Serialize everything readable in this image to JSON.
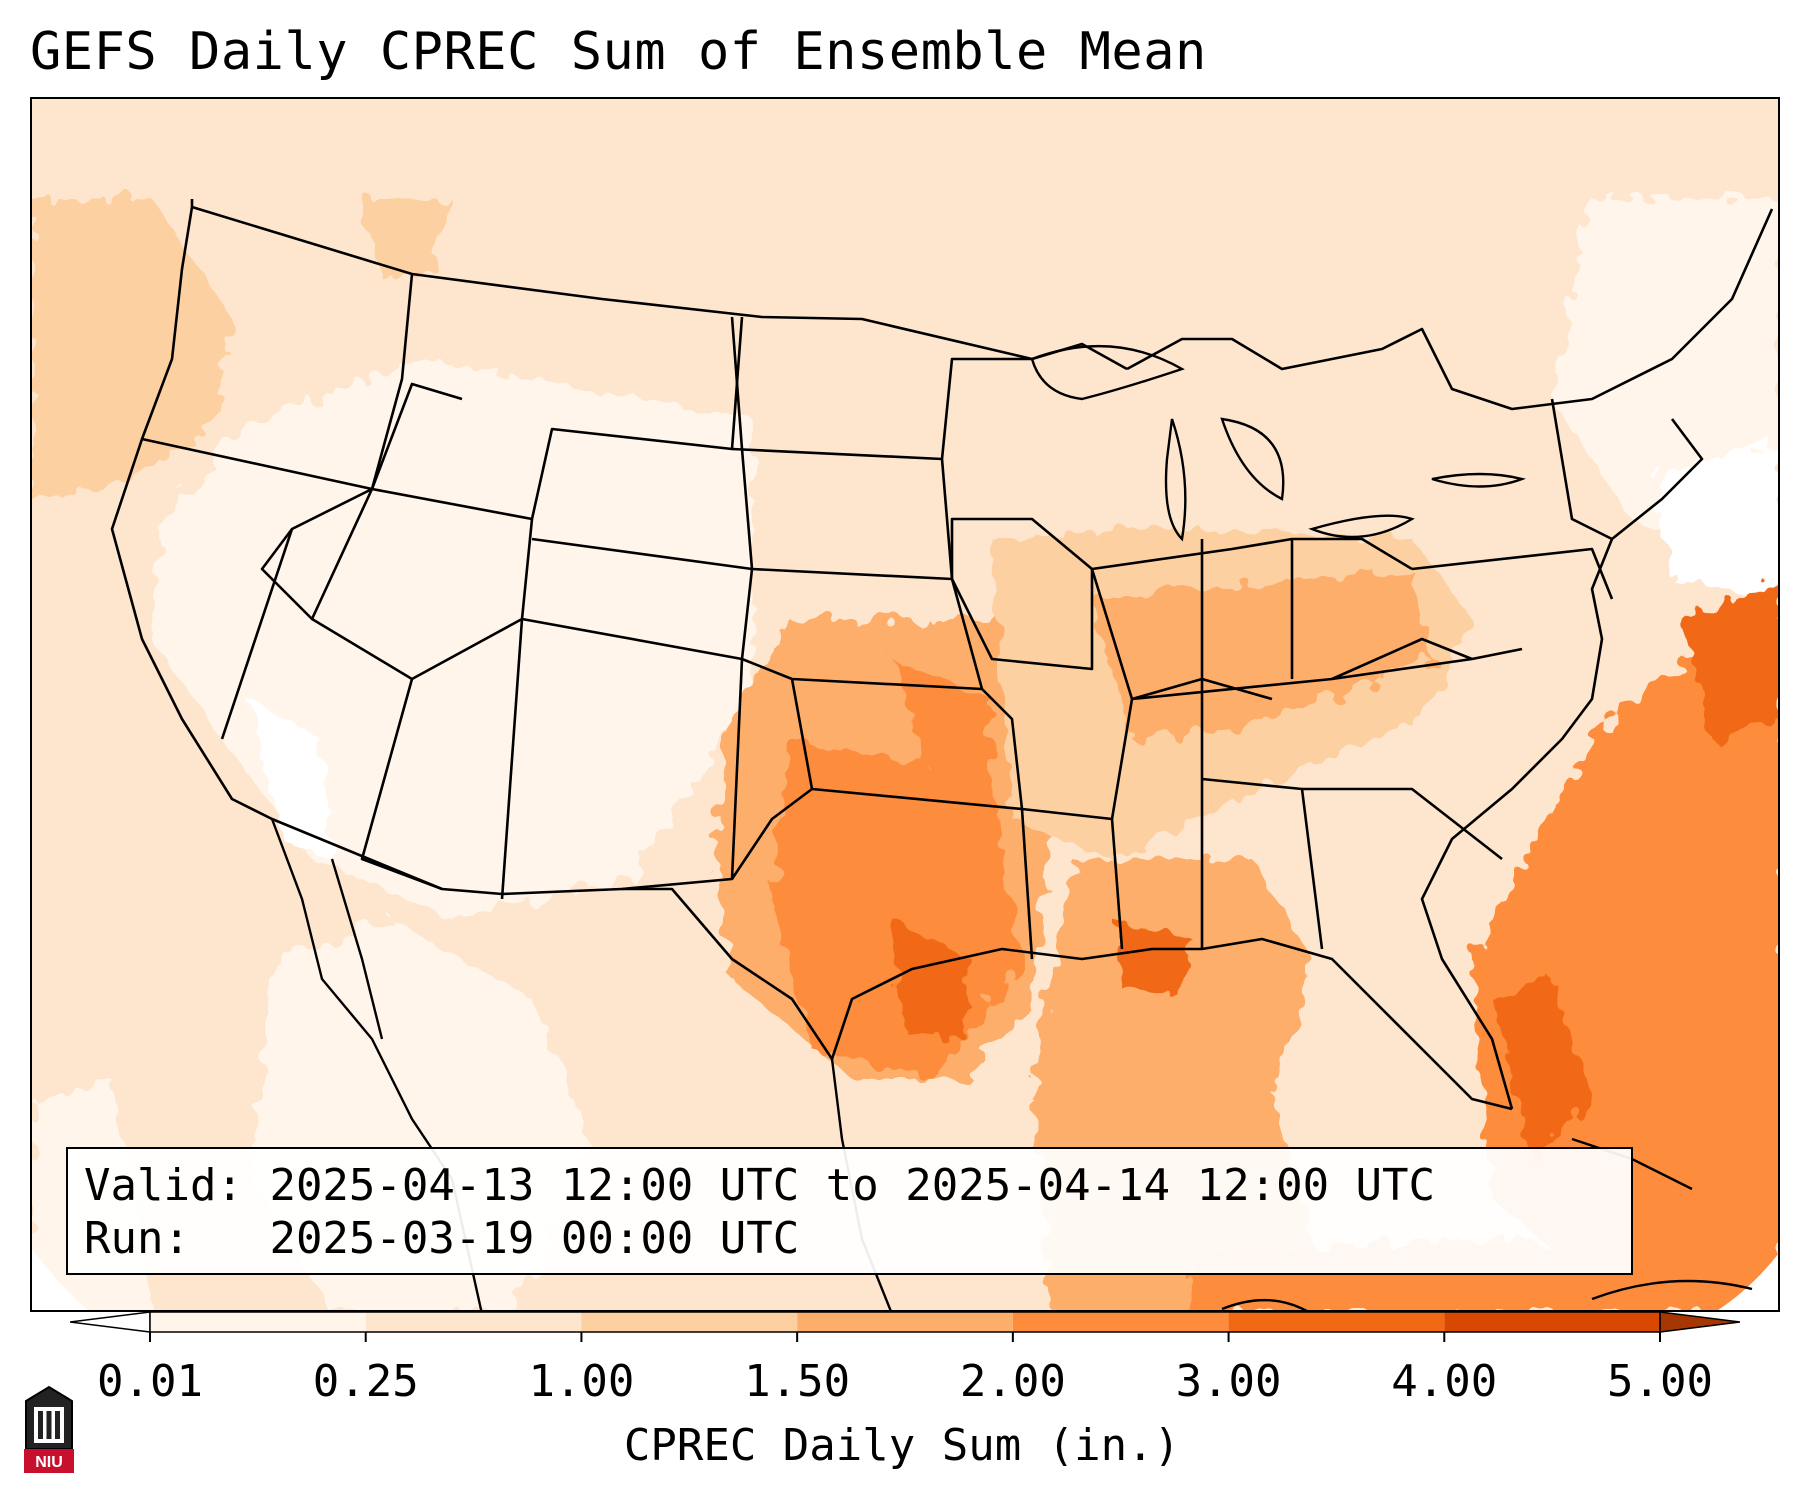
{
  "title": "GEFS Daily CPREC Sum of Ensemble Mean",
  "info": {
    "valid_label": "Valid:",
    "valid_value": "2025-04-13 12:00 UTC to 2025-04-14 12:00 UTC",
    "run_label": "Run:",
    "run_value": "2025-03-19 00:00 UTC"
  },
  "colorbar": {
    "label": "CPREC Daily Sum (in.)",
    "ticks": [
      "0.01",
      "0.25",
      "1.00",
      "1.50",
      "2.00",
      "3.00",
      "4.00",
      "5.00"
    ],
    "colors": [
      "#fff5eb",
      "#fee6ce",
      "#fdd0a2",
      "#fdae6b",
      "#fd8d3c",
      "#f16913",
      "#d94801"
    ],
    "under_color": "#ffffff",
    "over_color": "#a63603"
  },
  "logo": {
    "text": "NIU",
    "color": "#c8102e"
  },
  "map": {
    "region": "Continental United States",
    "colors": {
      "low": "#fff5eb",
      "base": "#fee6ce",
      "mid": "#fdd0a2",
      "mod": "#fdae6b",
      "high": "#fd8d3c",
      "peak": "#f16913",
      "max": "#d94801"
    }
  }
}
